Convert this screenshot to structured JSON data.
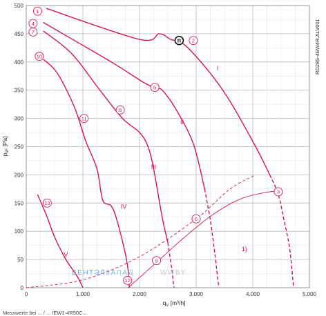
{
  "chart_data": {
    "type": "line",
    "xlabel_main": "q",
    "xlabel_sub": "V",
    "xlabel_unit": " [m³/h]",
    "ylabel_main": "p",
    "ylabel_sub": "sF",
    "ylabel_unit": " [Pa]",
    "xlim": [
      0,
      5000
    ],
    "ylim": [
      0,
      500
    ],
    "x_ticks": [
      0,
      1000,
      2000,
      3000,
      4000,
      5000
    ],
    "x_tick_labels": [
      "0",
      "1.000",
      "2.000",
      "3.000",
      "4.000",
      "5.000"
    ],
    "y_ticks": [
      0,
      50,
      100,
      150,
      200,
      250,
      300,
      350,
      400,
      450,
      500
    ],
    "y_tick_labels": [
      "0",
      "50",
      "100",
      "150",
      "200",
      "250",
      "300",
      "350",
      "400",
      "450",
      "500"
    ],
    "grid": true,
    "model_code": "RD28S-4EW4R.ALV001",
    "curve_color": "#d0155a",
    "series": [
      {
        "solid": [
          [
            350,
            495
          ],
          [
            2000,
            440
          ],
          [
            2350,
            450
          ],
          [
            2550,
            440
          ],
          [
            2800,
            430
          ],
          [
            3250,
            380
          ],
          [
            3600,
            330
          ],
          [
            4050,
            250
          ],
          [
            4300,
            200
          ]
        ],
        "dashed": [
          [
            4300,
            200
          ],
          [
            4450,
            165
          ],
          [
            4550,
            120
          ],
          [
            4650,
            70
          ],
          [
            4720,
            0
          ]
        ]
      },
      {
        "solid": [
          [
            300,
            470
          ],
          [
            1500,
            400
          ],
          [
            2050,
            365
          ],
          [
            2250,
            355
          ],
          [
            2400,
            350
          ],
          [
            2650,
            315
          ],
          [
            2950,
            255
          ],
          [
            3150,
            175
          ]
        ],
        "dashed": [
          [
            3150,
            175
          ],
          [
            3250,
            120
          ],
          [
            3330,
            60
          ],
          [
            3400,
            0
          ]
        ]
      },
      {
        "solid": [
          [
            300,
            455
          ],
          [
            800,
            415
          ],
          [
            1300,
            350
          ],
          [
            1700,
            300
          ],
          [
            2000,
            275
          ],
          [
            2150,
            250
          ],
          [
            2250,
            210
          ],
          [
            2400,
            125
          ],
          [
            2500,
            80
          ]
        ],
        "dashed": [
          [
            2500,
            80
          ],
          [
            2560,
            40
          ],
          [
            2610,
            0
          ]
        ]
      },
      {
        "solid": [
          [
            300,
            405
          ],
          [
            550,
            380
          ],
          [
            850,
            320
          ],
          [
            1050,
            260
          ],
          [
            1250,
            210
          ],
          [
            1350,
            155
          ],
          [
            1500,
            145
          ],
          [
            1600,
            120
          ],
          [
            1750,
            60
          ],
          [
            1800,
            30
          ],
          [
            1820,
            0
          ]
        ]
      },
      {
        "solid": [
          [
            200,
            165
          ],
          [
            350,
            130
          ],
          [
            500,
            90
          ],
          [
            700,
            50
          ],
          [
            900,
            20
          ],
          [
            1000,
            0
          ]
        ]
      }
    ],
    "system_curve_1": [
      [
        0,
        0
      ],
      [
        1000,
        14
      ],
      [
        2000,
        55
      ],
      [
        3000,
        122
      ],
      [
        3600,
        175
      ],
      [
        4050,
        200
      ]
    ],
    "system_curve_2": [
      [
        1800,
        0
      ],
      [
        2300,
        45
      ],
      [
        2800,
        90
      ],
      [
        3300,
        130
      ],
      [
        3800,
        158
      ],
      [
        4300,
        170
      ],
      [
        4450,
        170
      ]
    ],
    "roman_labels": [
      {
        "text": "I",
        "x": 3380,
        "y": 385
      },
      {
        "text": "II",
        "x": 2750,
        "y": 290
      },
      {
        "text": "III",
        "x": 2250,
        "y": 210
      },
      {
        "text": "IV",
        "x": 1720,
        "y": 140
      },
      {
        "text": "V",
        "x": 700,
        "y": 55
      }
    ],
    "markers": [
      {
        "text": "1",
        "x": 200,
        "y": 490
      },
      {
        "text": "2",
        "x": 2950,
        "y": 438
      },
      {
        "text": "3",
        "x": 4450,
        "y": 170
      },
      {
        "text": "4",
        "x": 120,
        "y": 468
      },
      {
        "text": "5",
        "x": 2270,
        "y": 355
      },
      {
        "text": "6",
        "x": 3000,
        "y": 122
      },
      {
        "text": "7",
        "x": 120,
        "y": 453
      },
      {
        "text": "8",
        "x": 1660,
        "y": 315
      },
      {
        "text": "9",
        "x": 2300,
        "y": 48
      },
      {
        "text": "10",
        "x": 230,
        "y": 410
      },
      {
        "text": "11",
        "x": 1020,
        "y": 300
      },
      {
        "text": "12",
        "x": 1790,
        "y": 13
      },
      {
        "text": "13",
        "x": 370,
        "y": 150
      }
    ],
    "note_1": {
      "text": "1)",
      "x": 3850,
      "y": 65
    },
    "operating_point_symbol": "n",
    "operating_point": {
      "x": 2700,
      "y": 438
    }
  },
  "watermark": {
    "part1": "ВЕНТЭЛ",
    "part2": "ЗАПАД",
    "part3": "WWBY"
  },
  "footer_text": "Messwerte bei ... / ... IEW1-4R50C..."
}
